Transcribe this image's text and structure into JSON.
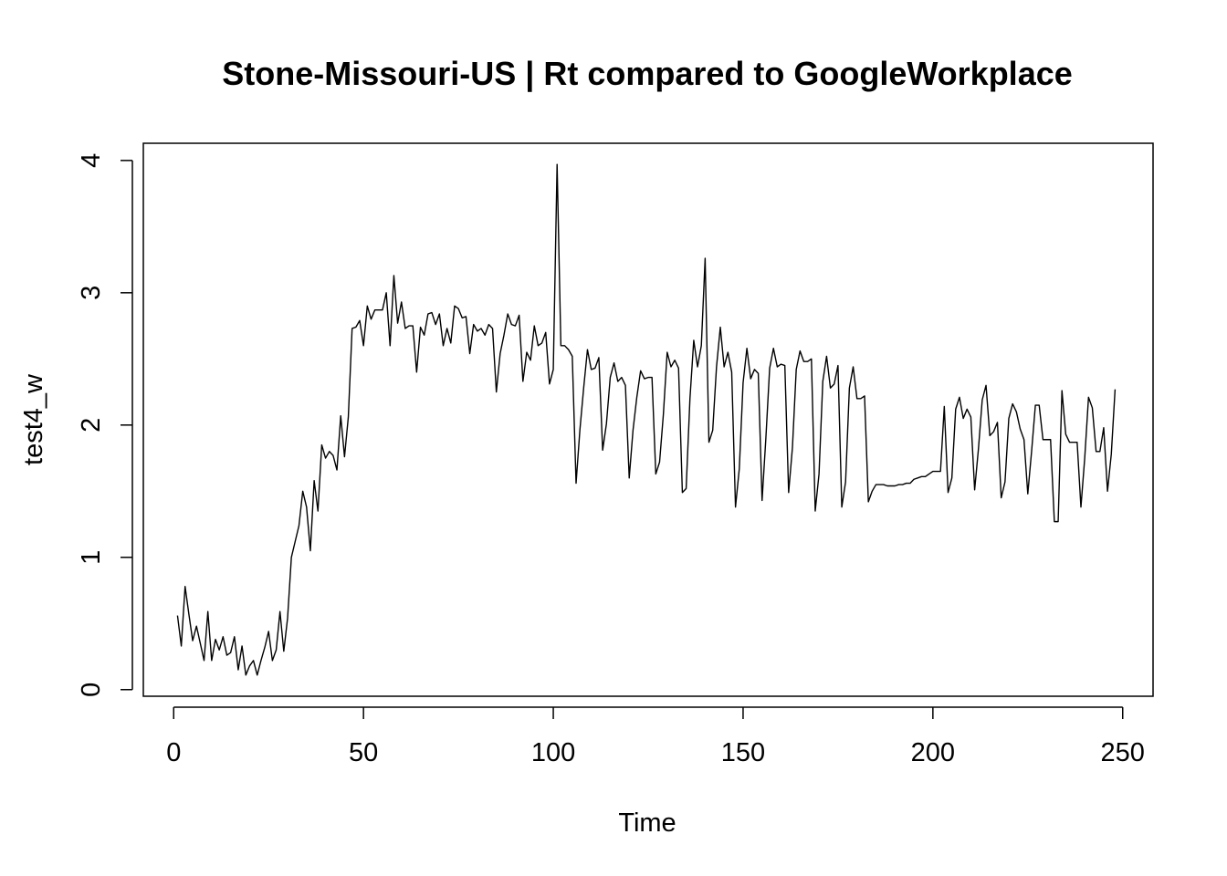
{
  "chart_data": {
    "type": "line",
    "title": "Stone-Missouri-US | Rt compared to GoogleWorkplace",
    "xlabel": "Time",
    "ylabel": "test4_w",
    "xlim": [
      -8,
      258
    ],
    "ylim": [
      -0.05,
      4.13
    ],
    "x_ticks": [
      0,
      50,
      100,
      150,
      200,
      250
    ],
    "y_ticks": [
      0,
      1,
      2,
      3,
      4
    ],
    "grid": false,
    "legend": "none",
    "line_color": "#000000",
    "series": [
      {
        "x_start": 1,
        "values": [
          0.56,
          0.33,
          0.78,
          0.57,
          0.37,
          0.48,
          0.35,
          0.22,
          0.59,
          0.22,
          0.38,
          0.3,
          0.4,
          0.26,
          0.28,
          0.4,
          0.15,
          0.33,
          0.11,
          0.18,
          0.22,
          0.11,
          0.22,
          0.32,
          0.44,
          0.22,
          0.3,
          0.59,
          0.29,
          0.54,
          1.0,
          1.12,
          1.24,
          1.5,
          1.38,
          1.05,
          1.58,
          1.35,
          1.85,
          1.75,
          1.8,
          1.77,
          1.66,
          2.07,
          1.76,
          2.06,
          2.73,
          2.74,
          2.79,
          2.6,
          2.9,
          2.8,
          2.87,
          2.87,
          2.87,
          3.0,
          2.6,
          3.13,
          2.77,
          2.93,
          2.73,
          2.75,
          2.75,
          2.4,
          2.74,
          2.68,
          2.84,
          2.85,
          2.76,
          2.84,
          2.6,
          2.73,
          2.62,
          2.9,
          2.88,
          2.81,
          2.82,
          2.54,
          2.76,
          2.71,
          2.73,
          2.68,
          2.76,
          2.73,
          2.25,
          2.54,
          2.68,
          2.84,
          2.76,
          2.75,
          2.83,
          2.33,
          2.55,
          2.49,
          2.75,
          2.6,
          2.62,
          2.7,
          2.31,
          2.42,
          3.97,
          2.6,
          2.6,
          2.57,
          2.52,
          1.56,
          1.96,
          2.28,
          2.57,
          2.42,
          2.43,
          2.51,
          1.81,
          2.01,
          2.36,
          2.47,
          2.33,
          2.36,
          2.3,
          1.6,
          1.96,
          2.21,
          2.41,
          2.35,
          2.36,
          2.36,
          1.63,
          1.72,
          2.08,
          2.55,
          2.44,
          2.49,
          2.43,
          1.49,
          1.52,
          2.2,
          2.64,
          2.44,
          2.6,
          3.26,
          1.87,
          1.96,
          2.44,
          2.74,
          2.44,
          2.55,
          2.4,
          1.38,
          1.67,
          2.32,
          2.58,
          2.35,
          2.42,
          2.39,
          1.43,
          1.9,
          2.43,
          2.58,
          2.44,
          2.46,
          2.45,
          1.49,
          1.83,
          2.42,
          2.56,
          2.48,
          2.48,
          2.5,
          1.35,
          1.63,
          2.33,
          2.52,
          2.28,
          2.31,
          2.45,
          1.38,
          1.57,
          2.28,
          2.44,
          2.2,
          2.2,
          2.22,
          1.42,
          1.5,
          1.55,
          1.55,
          1.55,
          1.54,
          1.54,
          1.54,
          1.55,
          1.55,
          1.56,
          1.56,
          1.59,
          1.6,
          1.61,
          1.61,
          1.63,
          1.65,
          1.65,
          1.65,
          2.14,
          1.49,
          1.6,
          2.12,
          2.21,
          2.05,
          2.12,
          2.06,
          1.51,
          1.82,
          2.19,
          2.3,
          1.92,
          1.95,
          2.02,
          1.45,
          1.57,
          2.05,
          2.16,
          2.1,
          1.97,
          1.89,
          1.48,
          1.8,
          2.15,
          2.15,
          1.89,
          1.89,
          1.89,
          1.27,
          1.27,
          2.26,
          1.93,
          1.87,
          1.87,
          1.87,
          1.38,
          1.75,
          2.21,
          2.13,
          1.8,
          1.8,
          1.98,
          1.5,
          1.78,
          2.27
        ]
      }
    ]
  }
}
